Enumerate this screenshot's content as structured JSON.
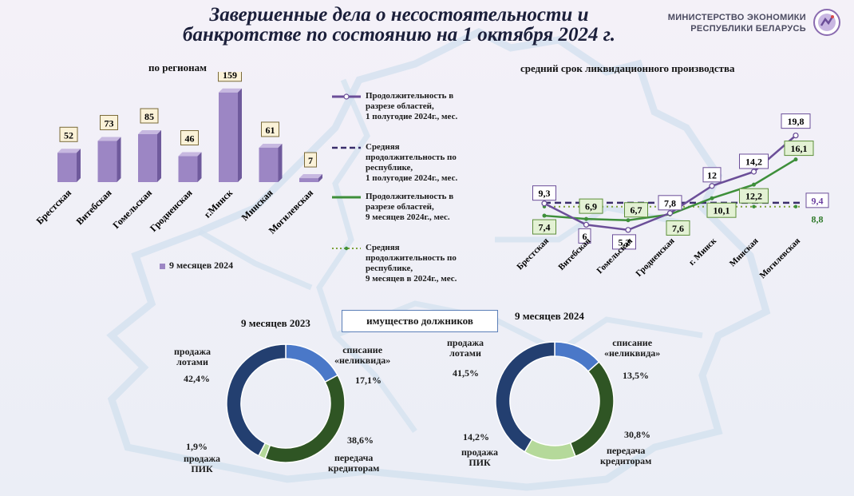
{
  "header": {
    "title_line1": "Завершенные дела о несостоятельности и",
    "title_line2": "банкротстве по состоянию на 1 октября 2024 г.",
    "ministry_line1": "МИНИСТЕРСТВО ЭКОНОМИКИ",
    "ministry_line2": "РЕСПУБЛИКИ БЕЛАРУСЬ"
  },
  "colors": {
    "bar": "#9c86c4",
    "line_h1": "#6b4e98",
    "line_9m": "#3e8f3a",
    "avg_h1": "#3a2d6b",
    "avg_9m": "#7ea33a",
    "donut_dark_blue": "#233f70",
    "donut_blue": "#4a78c8",
    "donut_dark_green": "#2f5524",
    "donut_light_green": "#b5d99a"
  },
  "chart_data": [
    {
      "type": "bar",
      "title": "по регионам",
      "categories": [
        "Брестская",
        "Витебская",
        "Гомельская",
        "Гродненская",
        "г.Минск",
        "Минская",
        "Могилевская"
      ],
      "series": [
        {
          "name": "9 месяцев  2024",
          "values": [
            52,
            73,
            85,
            46,
            159,
            61,
            7
          ]
        }
      ],
      "ylim": [
        0,
        170
      ],
      "legend": "bottom"
    },
    {
      "type": "line",
      "title": "средний срок ликвидационного производства",
      "categories": [
        "Брестская",
        "Витебская",
        "Гомельская",
        "Гродненская",
        "г. Минск",
        "Минская",
        "Могилевская"
      ],
      "series": [
        {
          "name": "Продолжительность в разрезе областей, 1 полугодие 2024г., мес.",
          "values": [
            9.3,
            6,
            5.2,
            7.8,
            12,
            14.2,
            19.8
          ]
        },
        {
          "name": "Средняя продолжительность по республике, 1 полугодие 2024г., мес.",
          "values": [
            9.4,
            9.4,
            9.4,
            9.4,
            9.4,
            9.4,
            9.4
          ],
          "label": "9,4"
        },
        {
          "name": "Продолжительность в разрезе областей, 9 месяцев 2024г., мес.",
          "values": [
            7.4,
            6.9,
            6.7,
            7.6,
            10.1,
            12.2,
            16.1
          ]
        },
        {
          "name": "Средняя продолжительность по республике, 9 месяцев в 2024г., мес.",
          "values": [
            8.8,
            8.8,
            8.8,
            8.8,
            8.8,
            8.8,
            8.8
          ],
          "label": "8,8"
        }
      ],
      "data_labels_h1": [
        "9,3",
        "6",
        "5,2",
        "7,8",
        "12",
        "14,2",
        "19,8"
      ],
      "data_labels_9m": [
        "7,4",
        "6,9",
        "6,7",
        "7,6",
        "10,1",
        "12,2",
        "16,1"
      ],
      "ylim": [
        0,
        22
      ],
      "legend": "left"
    },
    {
      "type": "pie",
      "title": "9 месяцев 2023",
      "slices": [
        {
          "label": "списание «неликвида»",
          "value": 17.1,
          "text": "17,1%"
        },
        {
          "label": "передача кредиторам",
          "value": 38.6,
          "text": "38,6%"
        },
        {
          "label": "продажа ПИК",
          "value": 1.9,
          "text": "1,9%"
        },
        {
          "label": "продажа лотами",
          "value": 42.4,
          "text": "42,4%"
        }
      ]
    },
    {
      "type": "pie",
      "title": "9 месяцев 2024",
      "slices": [
        {
          "label": "списание «неликвида»",
          "value": 13.5,
          "text": "13,5%"
        },
        {
          "label": "передача кредиторам",
          "value": 30.8,
          "text": "30,8%"
        },
        {
          "label": "продажа ПИК",
          "value": 14.2,
          "text": "14,2%"
        },
        {
          "label": "продажа лотами",
          "value": 41.5,
          "text": "41,5%"
        }
      ]
    }
  ],
  "property_label": "имущество должников",
  "pie_labels": {
    "lots_line1": "продажа",
    "lots_line2": "лотами",
    "writeoff_line1": "списание",
    "writeoff_line2": "«неликвида»",
    "creditors_line1": "передача",
    "creditors_line2": "кредиторам",
    "pik_line1": "продажа",
    "pik_line2": "ПИК"
  },
  "legend": {
    "h1_line1": "Продолжительность в",
    "h1_line2": "разрезе областей,",
    "h1_line3": "1 полугодие 2024г., мес.",
    "avg_h1_line1": "Средняя",
    "avg_h1_line2": "продолжительность по",
    "avg_h1_line3": "республике,",
    "avg_h1_line4": "1 полугодие 2024г., мес.",
    "m9_line1": "Продолжительность в",
    "m9_line2": "разрезе областей,",
    "m9_line3": "9 месяцев 2024г., мес.",
    "avg_9m_line1": "Средняя",
    "avg_9m_line2": "продолжительность по",
    "avg_9m_line3": "республике,",
    "avg_9m_line4": "9 месяцев в 2024г., мес."
  }
}
